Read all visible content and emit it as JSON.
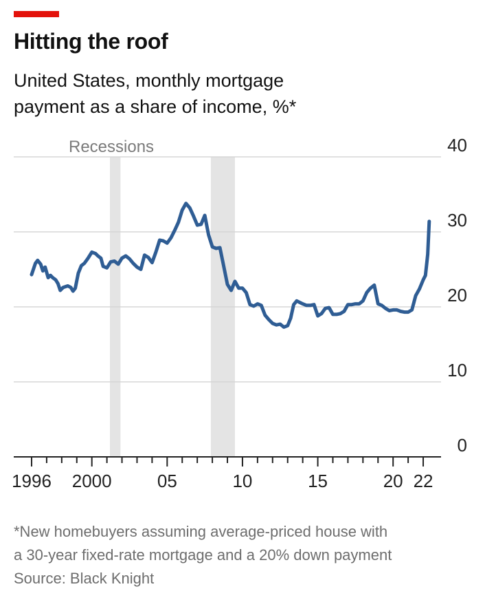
{
  "header": {
    "title": "Hitting the roof",
    "subtitle_line1": "United States, monthly mortgage",
    "subtitle_line2": "payment as a share of income, %*"
  },
  "footer": {
    "note_line1": "*New homebuyers assuming average-priced house with",
    "note_line2": "a 30-year fixed-rate mortgage and a 20% down payment",
    "source": "Source: Black Knight"
  },
  "colors": {
    "accent": "#e3120b",
    "line": "#2f5d94",
    "recession": "#e4e4e4",
    "grid": "#d5d5d5"
  },
  "chart_data": {
    "type": "line",
    "title": "Hitting the roof",
    "subtitle": "United States, monthly mortgage payment as a share of income, %*",
    "ylim": [
      0,
      40
    ],
    "yticks": [
      "0",
      "10",
      "20",
      "30",
      "40"
    ],
    "xlim": [
      1996.0,
      2022.5
    ],
    "xticks": [
      {
        "x": 1996,
        "label": "1996"
      },
      {
        "x": 2000,
        "label": "2000"
      },
      {
        "x": 2005,
        "label": "05"
      },
      {
        "x": 2010,
        "label": "10"
      },
      {
        "x": 2015,
        "label": "15"
      },
      {
        "x": 2020,
        "label": "20"
      },
      {
        "x": 2022,
        "label": "22"
      }
    ],
    "grid": true,
    "recessions_label": "Recessions",
    "recessions": [
      [
        2001.2,
        2001.9
      ],
      [
        2007.9,
        2009.5
      ]
    ],
    "series": [
      {
        "name": "",
        "x": [
          1996.0,
          1996.25,
          1996.4,
          1996.6,
          1996.75,
          1996.9,
          1997.1,
          1997.25,
          1997.4,
          1997.6,
          1997.75,
          1997.9,
          1998.1,
          1998.25,
          1998.4,
          1998.6,
          1998.75,
          1998.9,
          1999.1,
          1999.3,
          1999.5,
          1999.75,
          2000.0,
          2000.25,
          2000.4,
          2000.6,
          2000.75,
          2001.0,
          2001.25,
          2001.5,
          2001.75,
          2002.0,
          2002.25,
          2002.5,
          2002.75,
          2003.0,
          2003.25,
          2003.5,
          2003.75,
          2004.0,
          2004.25,
          2004.5,
          2004.75,
          2005.0,
          2005.25,
          2005.5,
          2005.75,
          2006.0,
          2006.25,
          2006.5,
          2006.75,
          2007.0,
          2007.25,
          2007.5,
          2007.75,
          2008.0,
          2008.25,
          2008.5,
          2008.75,
          2009.0,
          2009.25,
          2009.5,
          2009.75,
          2010.0,
          2010.25,
          2010.5,
          2010.75,
          2011.0,
          2011.25,
          2011.5,
          2011.75,
          2012.0,
          2012.25,
          2012.5,
          2012.75,
          2013.0,
          2013.2,
          2013.4,
          2013.6,
          2013.8,
          2014.0,
          2014.25,
          2014.5,
          2014.75,
          2015.0,
          2015.25,
          2015.5,
          2015.75,
          2016.0,
          2016.25,
          2016.5,
          2016.75,
          2017.0,
          2017.25,
          2017.5,
          2017.75,
          2018.0,
          2018.25,
          2018.5,
          2018.75,
          2019.0,
          2019.25,
          2019.5,
          2019.75,
          2020.0,
          2020.25,
          2020.5,
          2020.75,
          2021.0,
          2021.25,
          2021.5,
          2021.75,
          2022.0,
          2022.15,
          2022.3,
          2022.4
        ],
        "y": [
          24.3,
          25.8,
          26.2,
          25.7,
          24.8,
          25.3,
          23.9,
          24.2,
          23.9,
          23.6,
          23.1,
          22.2,
          22.6,
          22.7,
          22.8,
          22.6,
          22.1,
          22.5,
          24.5,
          25.5,
          25.8,
          26.5,
          27.3,
          27.1,
          26.8,
          26.5,
          25.4,
          25.2,
          26.0,
          26.1,
          25.7,
          26.5,
          26.8,
          26.4,
          25.8,
          25.3,
          25.0,
          26.9,
          26.6,
          25.9,
          27.3,
          28.9,
          28.8,
          28.5,
          29.2,
          30.2,
          31.3,
          32.9,
          33.8,
          33.2,
          32.1,
          30.9,
          31.0,
          32.2,
          29.6,
          28.0,
          27.8,
          27.9,
          25.5,
          23.0,
          22.2,
          23.4,
          22.5,
          22.5,
          21.9,
          20.3,
          20.1,
          20.4,
          20.2,
          18.9,
          18.3,
          17.8,
          17.6,
          17.7,
          17.3,
          17.5,
          18.5,
          20.3,
          20.8,
          20.6,
          20.4,
          20.2,
          20.2,
          20.3,
          18.8,
          19.1,
          19.8,
          19.9,
          19.0,
          19.0,
          19.1,
          19.4,
          20.3,
          20.3,
          20.4,
          20.4,
          20.8,
          21.9,
          22.5,
          22.9,
          20.4,
          20.2,
          19.8,
          19.5,
          19.6,
          19.6,
          19.4,
          19.3,
          19.3,
          19.6,
          21.5,
          22.4,
          23.6,
          24.2,
          27.0,
          31.4
        ]
      }
    ]
  }
}
